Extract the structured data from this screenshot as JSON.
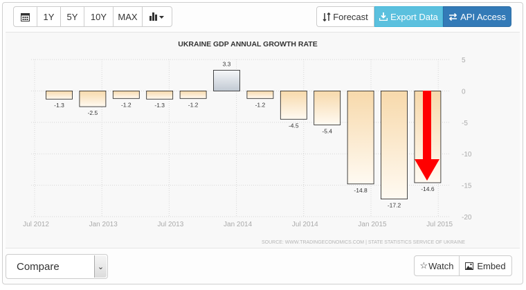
{
  "toolbar": {
    "ranges": [
      "1Y",
      "5Y",
      "10Y",
      "MAX"
    ],
    "forecast_label": "Forecast",
    "export_label": "Export Data",
    "api_label": "API Access"
  },
  "footer": {
    "compare_label": "Compare",
    "watch_label": "Watch",
    "embed_label": "Embed"
  },
  "colors": {
    "export_bg": "#5bc0de",
    "api_bg": "#337ab7",
    "arrow": "#ff0000",
    "bar_negative": "#f8dcb2",
    "bar_positive": "#c9d1da"
  },
  "chart_data": {
    "type": "bar",
    "title": "UKRAINE GDP ANNUAL GROWTH RATE",
    "source": "SOURCE: WWW.TRADINGECONOMICS.COM | STATE STATISTICS SERVICE OF UKRAINE",
    "values": [
      -1.3,
      -2.5,
      -1.2,
      -1.3,
      -1.2,
      3.3,
      -1.2,
      -4.5,
      -5.4,
      -14.8,
      -17.2,
      -14.6
    ],
    "value_labels": [
      "-1.3",
      "-2.5",
      "-1.2",
      "-1.3",
      "-1.2",
      "3.3",
      "-1.2",
      "-4.5",
      "-5.4",
      "-14.8",
      "-17.2",
      "-14.6"
    ],
    "x_ticks": [
      "Jul 2012",
      "Jan 2013",
      "Jul 2013",
      "Jan 2014",
      "Jul 2014",
      "Jan 2015",
      "Jul 2015"
    ],
    "y_ticks": [
      "5",
      "0",
      "-5",
      "-10",
      "-15",
      "-20"
    ],
    "y_tick_values": [
      5,
      0,
      -5,
      -10,
      -15,
      -20
    ],
    "ylim": [
      -20,
      5
    ],
    "grid": true,
    "annotation": "red arrow pointing down to last bar (-14.6)"
  }
}
